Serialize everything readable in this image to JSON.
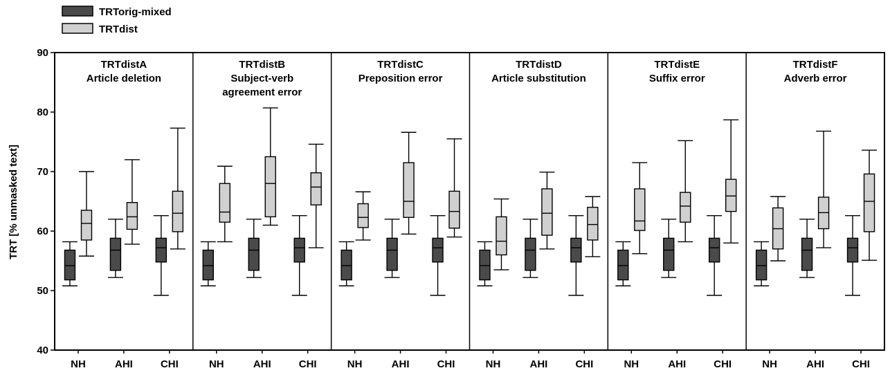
{
  "chart_data": {
    "type": "box",
    "ylabel": "TRT [% unmasked text]",
    "ylim": [
      40,
      90
    ],
    "yticks": [
      40,
      50,
      60,
      70,
      80,
      90
    ],
    "categories": [
      "NH",
      "AHI",
      "CHI"
    ],
    "legend": {
      "placement": "top-left",
      "items": [
        {
          "name": "TRTorig-mixed",
          "color": "#4a4a4a"
        },
        {
          "name": "TRTdist",
          "color": "#d0d0d0"
        }
      ]
    },
    "panels": [
      {
        "title": [
          "TRTdistA",
          "Article deletion"
        ],
        "series": [
          {
            "name": "TRTorig-mixed",
            "boxes": [
              {
                "min": 50.8,
                "q1": 51.8,
                "median": 54.2,
                "q3": 56.8,
                "max": 58.2
              },
              {
                "min": 52.2,
                "q1": 53.4,
                "median": 56.8,
                "q3": 58.8,
                "max": 62.0
              },
              {
                "min": 49.2,
                "q1": 54.8,
                "median": 57.2,
                "q3": 58.8,
                "max": 62.6
              }
            ]
          },
          {
            "name": "TRTdist",
            "boxes": [
              {
                "min": 55.8,
                "q1": 58.5,
                "median": 61.3,
                "q3": 63.5,
                "max": 70.0
              },
              {
                "min": 57.8,
                "q1": 60.3,
                "median": 62.4,
                "q3": 64.8,
                "max": 72.0
              },
              {
                "min": 57.0,
                "q1": 59.9,
                "median": 63.0,
                "q3": 66.7,
                "max": 77.3
              }
            ]
          }
        ]
      },
      {
        "title": [
          "TRTdistB",
          "Subject-verb",
          "agreement error"
        ],
        "series": [
          {
            "name": "TRTorig-mixed",
            "boxes": [
              {
                "min": 50.8,
                "q1": 51.8,
                "median": 54.2,
                "q3": 56.8,
                "max": 58.2
              },
              {
                "min": 52.2,
                "q1": 53.4,
                "median": 56.8,
                "q3": 58.8,
                "max": 62.0
              },
              {
                "min": 49.2,
                "q1": 54.8,
                "median": 57.2,
                "q3": 58.8,
                "max": 62.6
              }
            ]
          },
          {
            "name": "TRTdist",
            "boxes": [
              {
                "min": 58.2,
                "q1": 61.5,
                "median": 63.2,
                "q3": 68.0,
                "max": 70.9
              },
              {
                "min": 61.0,
                "q1": 62.4,
                "median": 68.0,
                "q3": 72.5,
                "max": 80.7
              },
              {
                "min": 57.2,
                "q1": 64.4,
                "median": 67.4,
                "q3": 69.8,
                "max": 74.6
              }
            ]
          }
        ]
      },
      {
        "title": [
          "TRTdistC",
          "Preposition error"
        ],
        "series": [
          {
            "name": "TRTorig-mixed",
            "boxes": [
              {
                "min": 50.8,
                "q1": 51.8,
                "median": 54.2,
                "q3": 56.8,
                "max": 58.2
              },
              {
                "min": 52.2,
                "q1": 53.4,
                "median": 56.8,
                "q3": 58.8,
                "max": 62.0
              },
              {
                "min": 49.2,
                "q1": 54.8,
                "median": 57.2,
                "q3": 58.8,
                "max": 62.6
              }
            ]
          },
          {
            "name": "TRTdist",
            "boxes": [
              {
                "min": 58.5,
                "q1": 60.6,
                "median": 62.3,
                "q3": 64.6,
                "max": 66.6
              },
              {
                "min": 59.5,
                "q1": 62.3,
                "median": 65.0,
                "q3": 71.5,
                "max": 76.6
              },
              {
                "min": 59.0,
                "q1": 60.5,
                "median": 63.3,
                "q3": 66.7,
                "max": 75.5
              }
            ]
          }
        ]
      },
      {
        "title": [
          "TRTdistD",
          "Article substitution"
        ],
        "series": [
          {
            "name": "TRTorig-mixed",
            "boxes": [
              {
                "min": 50.8,
                "q1": 51.8,
                "median": 54.2,
                "q3": 56.8,
                "max": 58.2
              },
              {
                "min": 52.2,
                "q1": 53.4,
                "median": 56.8,
                "q3": 58.8,
                "max": 62.0
              },
              {
                "min": 49.2,
                "q1": 54.8,
                "median": 57.2,
                "q3": 58.8,
                "max": 62.6
              }
            ]
          },
          {
            "name": "TRTdist",
            "boxes": [
              {
                "min": 53.5,
                "q1": 56.0,
                "median": 58.3,
                "q3": 62.4,
                "max": 65.4
              },
              {
                "min": 57.0,
                "q1": 59.3,
                "median": 63.0,
                "q3": 67.1,
                "max": 69.9
              },
              {
                "min": 55.7,
                "q1": 58.5,
                "median": 61.1,
                "q3": 64.0,
                "max": 65.8
              }
            ]
          }
        ]
      },
      {
        "title": [
          "TRTdistE",
          "Suffix error"
        ],
        "series": [
          {
            "name": "TRTorig-mixed",
            "boxes": [
              {
                "min": 50.8,
                "q1": 51.8,
                "median": 54.2,
                "q3": 56.8,
                "max": 58.2
              },
              {
                "min": 52.2,
                "q1": 53.4,
                "median": 56.8,
                "q3": 58.8,
                "max": 62.0
              },
              {
                "min": 49.2,
                "q1": 54.8,
                "median": 57.2,
                "q3": 58.8,
                "max": 62.6
              }
            ]
          },
          {
            "name": "TRTdist",
            "boxes": [
              {
                "min": 56.2,
                "q1": 60.1,
                "median": 61.7,
                "q3": 67.1,
                "max": 71.5
              },
              {
                "min": 58.2,
                "q1": 61.5,
                "median": 64.2,
                "q3": 66.5,
                "max": 75.2
              },
              {
                "min": 58.0,
                "q1": 63.3,
                "median": 65.9,
                "q3": 68.7,
                "max": 78.7
              }
            ]
          }
        ]
      },
      {
        "title": [
          "TRTdistF",
          "Adverb error"
        ],
        "series": [
          {
            "name": "TRTorig-mixed",
            "boxes": [
              {
                "min": 50.8,
                "q1": 51.8,
                "median": 54.2,
                "q3": 56.8,
                "max": 58.2
              },
              {
                "min": 52.2,
                "q1": 53.4,
                "median": 56.8,
                "q3": 58.8,
                "max": 62.0
              },
              {
                "min": 49.2,
                "q1": 54.8,
                "median": 57.2,
                "q3": 58.8,
                "max": 62.6
              }
            ]
          },
          {
            "name": "TRTdist",
            "boxes": [
              {
                "min": 55.0,
                "q1": 57.0,
                "median": 60.4,
                "q3": 63.9,
                "max": 65.8
              },
              {
                "min": 57.2,
                "q1": 60.4,
                "median": 63.1,
                "q3": 65.7,
                "max": 76.8
              },
              {
                "min": 55.1,
                "q1": 59.9,
                "median": 65.0,
                "q3": 69.6,
                "max": 73.6
              }
            ]
          }
        ]
      }
    ]
  }
}
